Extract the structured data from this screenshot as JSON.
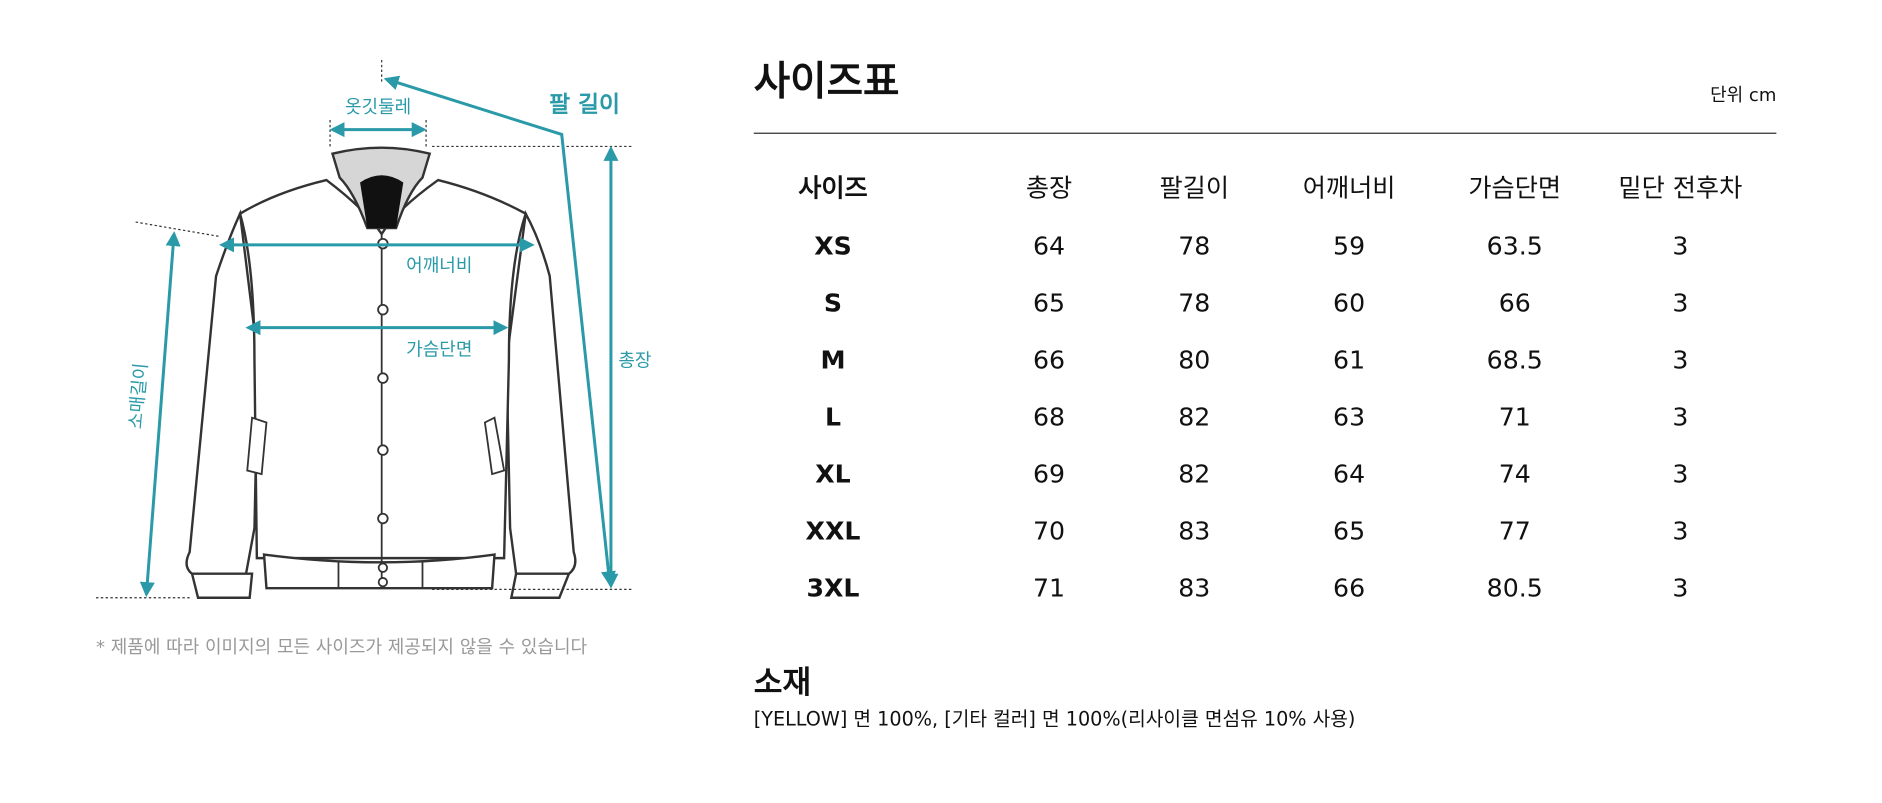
{
  "diagram": {
    "labels": {
      "collar": "옷깃둘레",
      "arm": "팔 길이",
      "shoulder": "어깨너비",
      "chest": "가슴단면",
      "length": "총장",
      "sleeve": "소매길이"
    },
    "note": "* 제품에 따라 이미지의 모든 사이즈가 제공되지 않을 수 있습니다"
  },
  "size_chart": {
    "title": "사이즈표",
    "unit": "단위 cm",
    "table": {
      "header": [
        "사이즈",
        "총장",
        "팔길이",
        "어깨너비",
        "가슴단면",
        "밑단 전후차"
      ],
      "rows": [
        [
          "XS",
          64,
          78,
          59,
          63.5,
          3
        ],
        [
          "S",
          65,
          78,
          60,
          66,
          3
        ],
        [
          "M",
          66,
          80,
          61,
          68.5,
          3
        ],
        [
          "L",
          68,
          82,
          63,
          71,
          3
        ],
        [
          "XL",
          69,
          82,
          64,
          74,
          3
        ],
        [
          "XXL",
          70,
          83,
          65,
          77,
          3
        ],
        [
          "3XL",
          71,
          83,
          66,
          80.5,
          3
        ]
      ]
    }
  },
  "material": {
    "title": "소재",
    "text": "[YELLOW] 면 100%, [기타 컬러] 면 100%(리사이클 면섬유 10% 사용)"
  }
}
